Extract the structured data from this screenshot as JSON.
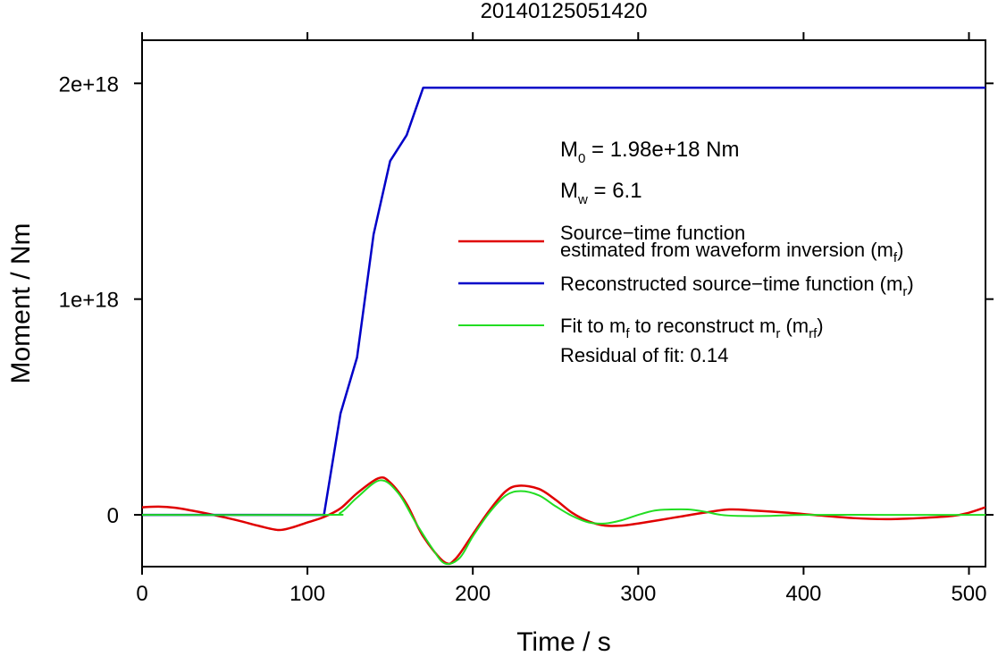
{
  "chart_data": {
    "type": "line",
    "title": "20140125051420",
    "xlabel": "Time / s",
    "ylabel": "Moment / Nm",
    "xlim": [
      0,
      510
    ],
    "ylim": [
      -2.4e+17,
      2.2e+18
    ],
    "xticks": [
      0,
      100,
      200,
      300,
      400,
      500
    ],
    "xtick_labels": [
      "0",
      "100",
      "200",
      "300",
      "400",
      "500"
    ],
    "yticks": [
      0,
      1e+18,
      2e+18
    ],
    "ytick_labels": [
      "0",
      "1e+18",
      "2e+18"
    ],
    "grid": false,
    "legend_position": "right",
    "annotations": {
      "m0_main": "M",
      "m0_sub": "0",
      "m0_value": " = 1.98e+18 Nm",
      "mw_main": "M",
      "mw_sub": "w",
      "mw_value": " = 6.1",
      "residual": "Residual of fit: 0.14"
    },
    "legend": [
      {
        "key": "mf",
        "color": "#e00000",
        "lines": [
          "Source−time function",
          "estimated from waveform inversion (m",
          "f",
          ")"
        ]
      },
      {
        "key": "mr",
        "color": "#0000c8",
        "lines": [
          "Reconstructed source−time function (m",
          "r",
          ")"
        ]
      },
      {
        "key": "mrf",
        "color": "#22dd22",
        "lines": [
          "Fit to m",
          "f",
          " to reconstruct m",
          "r",
          " (m",
          "rf",
          ")"
        ]
      }
    ],
    "series": [
      {
        "key": "mf",
        "color": "#e00000",
        "x": [
          0,
          10,
          20,
          30,
          40,
          50,
          60,
          70,
          82,
          90,
          100,
          110,
          120,
          130,
          143,
          150,
          160,
          170,
          183,
          190,
          200,
          210,
          220,
          228,
          240,
          250,
          260,
          270,
          280,
          290,
          300,
          320,
          340,
          355,
          370,
          390,
          410,
          430,
          450,
          470,
          490,
          500,
          510
        ],
        "values": [
          3.5e+16,
          3.8e+16,
          3.3e+16,
          2e+16,
          5000000000000000.0,
          -1.2e+16,
          -3e+16,
          -5e+16,
          -7e+16,
          -6e+16,
          -3.5e+16,
          -1e+16,
          3e+16,
          1e+17,
          1.7e+17,
          1.5e+17,
          5e+16,
          -1e+17,
          -2.2e+17,
          -2e+17,
          -9e+16,
          2e+16,
          1.1e+17,
          1.35e+17,
          1.2e+17,
          7e+16,
          1e+16,
          -3e+16,
          -5e+16,
          -5e+16,
          -4e+16,
          -1.5e+16,
          1e+16,
          2.5e+16,
          2e+16,
          1e+16,
          -3000000000000000.0,
          -1.5e+16,
          -2e+16,
          -1.5e+16,
          -5000000000000000.0,
          1e+16,
          3.5e+16
        ]
      },
      {
        "key": "mr",
        "color": "#0000c8",
        "x": [
          0,
          110,
          120,
          130,
          140,
          150,
          160,
          170,
          510
        ],
        "values": [
          0,
          0,
          4.7e+17,
          7.3e+17,
          1.3e+18,
          1.64e+18,
          1.76e+18,
          1.98e+18,
          1.98e+18
        ]
      },
      {
        "key": "mrf",
        "color": "#22dd22",
        "x": [
          0,
          110,
          120,
          130,
          144,
          155,
          165,
          175,
          183,
          192,
          200,
          210,
          220,
          229,
          240,
          250,
          260,
          270,
          280,
          290,
          300,
          310,
          320,
          330,
          340,
          350,
          360,
          380,
          400,
          450,
          500,
          510
        ],
        "values": [
          0,
          0,
          1e+16,
          8e+16,
          1.6e+17,
          1e+17,
          -3e+16,
          -1.5e+17,
          -2.25e+17,
          -2e+17,
          -1e+17,
          1e+16,
          9e+16,
          1.1e+17,
          9e+16,
          4e+16,
          -5000000000000000.0,
          -3.5e+16,
          -4e+16,
          -2.5e+16,
          0,
          2e+16,
          2.5e+16,
          2.5e+16,
          1.5e+16,
          0,
          -5000000000000000.0,
          -5000000000000000.0,
          0,
          0,
          0,
          0
        ]
      }
    ]
  }
}
